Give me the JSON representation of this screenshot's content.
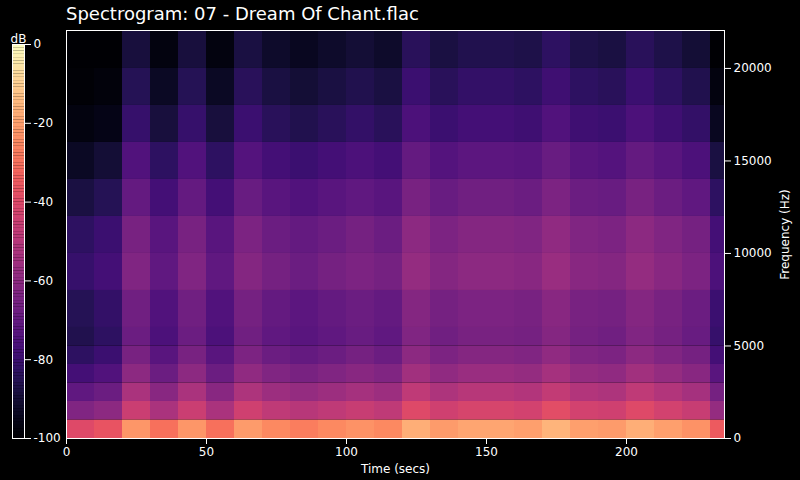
{
  "chart_data": {
    "type": "heatmap",
    "title": "Spectrogram: 07 - Dream Of Chant.flac",
    "x_label": "Time (secs)",
    "y_label": "Frequency (Hz)",
    "xlim": [
      0,
      235
    ],
    "xticks": [
      0,
      50,
      100,
      150,
      200
    ],
    "ylim": [
      0,
      22050
    ],
    "yticks": [
      0,
      5000,
      10000,
      15000,
      20000
    ],
    "x_edges": [
      0,
      10,
      20,
      30,
      40,
      50,
      60,
      70,
      80,
      90,
      100,
      110,
      120,
      130,
      140,
      150,
      160,
      170,
      180,
      190,
      200,
      210,
      220,
      230,
      235
    ],
    "y_edges": [
      0,
      1000,
      2000,
      3000,
      4000,
      5000,
      6000,
      8000,
      10000,
      12000,
      14000,
      16000,
      18000,
      20000,
      22050
    ],
    "cells": [
      [
        -40,
        -63,
        -71,
        -78,
        -83,
        -86,
        -85,
        -81,
        -83,
        -88,
        -93,
        -97,
        -99,
        -100
      ],
      [
        -37,
        -60,
        -68,
        -75,
        -80,
        -83,
        -82,
        -78,
        -80,
        -85,
        -90,
        -96,
        -98,
        -100
      ],
      [
        -22,
        -45,
        -53,
        -60,
        -65,
        -68,
        -67,
        -63,
        -65,
        -70,
        -75,
        -81,
        -85,
        -89
      ],
      [
        -30,
        -53,
        -61,
        -68,
        -73,
        -76,
        -75,
        -71,
        -73,
        -78,
        -83,
        -89,
        -93,
        -97
      ],
      [
        -22,
        -45,
        -53,
        -60,
        -65,
        -68,
        -67,
        -63,
        -65,
        -70,
        -75,
        -81,
        -85,
        -89
      ],
      [
        -30,
        -53,
        -61,
        -68,
        -73,
        -76,
        -75,
        -71,
        -73,
        -78,
        -83,
        -89,
        -93,
        -97
      ],
      [
        -21,
        -44,
        -52,
        -59,
        -64,
        -67,
        -66,
        -62,
        -64,
        -69,
        -74,
        -80,
        -84,
        -88
      ],
      [
        -25,
        -48,
        -56,
        -63,
        -68,
        -71,
        -70,
        -66,
        -68,
        -73,
        -78,
        -84,
        -88,
        -92
      ],
      [
        -27,
        -50,
        -58,
        -65,
        -70,
        -73,
        -72,
        -68,
        -70,
        -75,
        -80,
        -86,
        -90,
        -94
      ],
      [
        -25,
        -48,
        -56,
        -63,
        -68,
        -71,
        -70,
        -66,
        -68,
        -73,
        -78,
        -84,
        -88,
        -92
      ],
      [
        -23,
        -46,
        -54,
        -61,
        -66,
        -69,
        -68,
        -64,
        -66,
        -71,
        -76,
        -82,
        -86,
        -90
      ],
      [
        -25,
        -48,
        -56,
        -63,
        -68,
        -71,
        -70,
        -66,
        -68,
        -73,
        -78,
        -84,
        -88,
        -92
      ],
      [
        -17,
        -40,
        -48,
        -55,
        -60,
        -63,
        -62,
        -58,
        -60,
        -65,
        -70,
        -76,
        -80,
        -84
      ],
      [
        -21,
        -44,
        -52,
        -59,
        -64,
        -67,
        -66,
        -62,
        -64,
        -69,
        -74,
        -80,
        -84,
        -88
      ],
      [
        -19,
        -42,
        -50,
        -57,
        -62,
        -65,
        -64,
        -60,
        -62,
        -67,
        -72,
        -78,
        -82,
        -86
      ],
      [
        -19,
        -42,
        -50,
        -57,
        -62,
        -65,
        -64,
        -60,
        -62,
        -67,
        -72,
        -78,
        -82,
        -86
      ],
      [
        -20,
        -43,
        -51,
        -58,
        -63,
        -66,
        -65,
        -61,
        -63,
        -68,
        -73,
        -79,
        -83,
        -87
      ],
      [
        -16,
        -39,
        -47,
        -54,
        -59,
        -62,
        -61,
        -57,
        -59,
        -64,
        -69,
        -75,
        -79,
        -83
      ],
      [
        -20,
        -43,
        -51,
        -58,
        -63,
        -66,
        -65,
        -61,
        -63,
        -68,
        -73,
        -79,
        -83,
        -87
      ],
      [
        -21,
        -44,
        -52,
        -59,
        -64,
        -67,
        -66,
        -62,
        -64,
        -69,
        -74,
        -80,
        -84,
        -88
      ],
      [
        -17,
        -40,
        -48,
        -55,
        -60,
        -63,
        -62,
        -58,
        -60,
        -65,
        -70,
        -76,
        -80,
        -84
      ],
      [
        -20,
        -43,
        -51,
        -58,
        -63,
        -66,
        -65,
        -61,
        -63,
        -68,
        -73,
        -79,
        -83,
        -87
      ],
      [
        -23,
        -46,
        -54,
        -61,
        -66,
        -69,
        -68,
        -64,
        -66,
        -71,
        -76,
        -82,
        -86,
        -90
      ],
      [
        -35,
        -58,
        -66,
        -73,
        -78,
        -81,
        -80,
        -76,
        -78,
        -83,
        -88,
        -94,
        -97,
        -100
      ]
    ],
    "colorbar_label": "dB",
    "colorbar_lim": [
      -100,
      0
    ],
    "colorbar_ticks": [
      0,
      -20,
      -40,
      -60,
      -80,
      -100
    ]
  }
}
